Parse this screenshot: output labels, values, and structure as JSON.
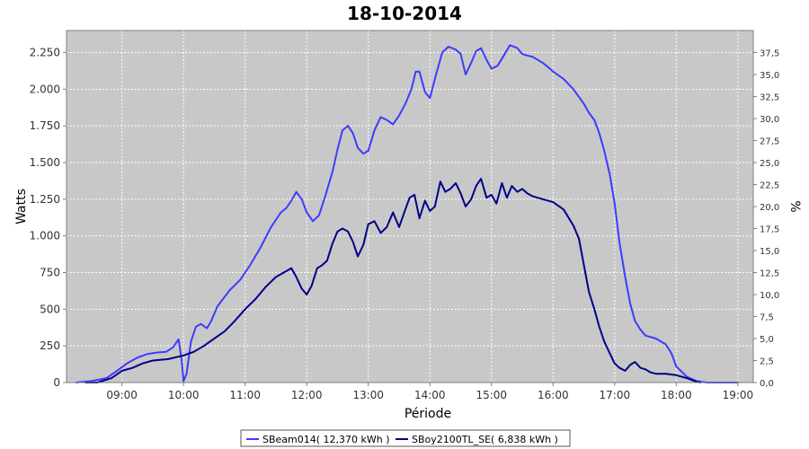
{
  "chart_data": {
    "type": "line",
    "title": "18-10-2014",
    "xlabel": "Période",
    "ylabel": "Watts",
    "y2label": "%",
    "xlim": [
      8.1,
      19.25
    ],
    "ylim": [
      0,
      2400
    ],
    "y2lim": [
      0,
      40
    ],
    "x_ticks": [
      {
        "v": 9,
        "label": "09:00"
      },
      {
        "v": 10,
        "label": "10:00"
      },
      {
        "v": 11,
        "label": "11:00"
      },
      {
        "v": 12,
        "label": "12:00"
      },
      {
        "v": 13,
        "label": "13:00"
      },
      {
        "v": 14,
        "label": "14:00"
      },
      {
        "v": 15,
        "label": "15:00"
      },
      {
        "v": 16,
        "label": "16:00"
      },
      {
        "v": 17,
        "label": "17:00"
      },
      {
        "v": 18,
        "label": "18:00"
      },
      {
        "v": 19,
        "label": "19:00"
      }
    ],
    "y_ticks": [
      {
        "v": 0,
        "label": "0"
      },
      {
        "v": 250,
        "label": "250"
      },
      {
        "v": 500,
        "label": "500"
      },
      {
        "v": 750,
        "label": "750"
      },
      {
        "v": 1000,
        "label": "1.000"
      },
      {
        "v": 1250,
        "label": "1.250"
      },
      {
        "v": 1500,
        "label": "1.500"
      },
      {
        "v": 1750,
        "label": "1.750"
      },
      {
        "v": 2000,
        "label": "2.000"
      },
      {
        "v": 2250,
        "label": "2.250"
      }
    ],
    "y2_ticks": [
      {
        "v": 0,
        "label": "0,0"
      },
      {
        "v": 2.5,
        "label": "2,5"
      },
      {
        "v": 5,
        "label": "5,0"
      },
      {
        "v": 7.5,
        "label": "7,5"
      },
      {
        "v": 10,
        "label": "10,0"
      },
      {
        "v": 12.5,
        "label": "12,5"
      },
      {
        "v": 15,
        "label": "15,0"
      },
      {
        "v": 17.5,
        "label": "17,5"
      },
      {
        "v": 20,
        "label": "20,0"
      },
      {
        "v": 22.5,
        "label": "22,5"
      },
      {
        "v": 25,
        "label": "25,0"
      },
      {
        "v": 27.5,
        "label": "27,5"
      },
      {
        "v": 30,
        "label": "30,0"
      },
      {
        "v": 32.5,
        "label": "32,5"
      },
      {
        "v": 35,
        "label": "35,0"
      },
      {
        "v": 37.5,
        "label": "37,5"
      }
    ],
    "grid": true,
    "legend_position": "bottom",
    "plot_background": "#c8c8c8",
    "series": [
      {
        "name": "SBeam014( 12,370 kWh )",
        "color": "#3c3cff",
        "x": [
          8.25,
          8.5,
          8.75,
          8.92,
          9.08,
          9.25,
          9.42,
          9.58,
          9.72,
          9.83,
          9.92,
          9.97,
          10.0,
          10.05,
          10.12,
          10.2,
          10.28,
          10.38,
          10.45,
          10.55,
          10.75,
          10.92,
          11.08,
          11.25,
          11.42,
          11.58,
          11.67,
          11.75,
          11.83,
          11.92,
          12.0,
          12.1,
          12.2,
          12.3,
          12.42,
          12.5,
          12.58,
          12.67,
          12.75,
          12.83,
          12.92,
          13.0,
          13.1,
          13.2,
          13.3,
          13.4,
          13.5,
          13.6,
          13.7,
          13.77,
          13.83,
          13.92,
          14.0,
          14.1,
          14.2,
          14.3,
          14.42,
          14.5,
          14.58,
          14.67,
          14.75,
          14.83,
          14.92,
          15.0,
          15.1,
          15.2,
          15.3,
          15.42,
          15.5,
          15.58,
          15.67,
          15.75,
          15.83,
          15.92,
          16.0,
          16.17,
          16.33,
          16.5,
          16.58,
          16.67,
          16.75,
          16.83,
          16.92,
          17.0,
          17.08,
          17.17,
          17.25,
          17.33,
          17.42,
          17.5,
          17.67,
          17.83,
          17.92,
          18.0,
          18.17,
          18.33,
          18.5,
          18.83,
          19.0
        ],
        "y": [
          0,
          10,
          30,
          80,
          130,
          170,
          195,
          205,
          210,
          240,
          295,
          150,
          10,
          60,
          280,
          380,
          400,
          370,
          420,
          520,
          630,
          700,
          800,
          920,
          1060,
          1160,
          1190,
          1240,
          1300,
          1250,
          1160,
          1100,
          1140,
          1270,
          1440,
          1590,
          1720,
          1750,
          1700,
          1600,
          1560,
          1580,
          1720,
          1810,
          1790,
          1760,
          1820,
          1900,
          2000,
          2120,
          2120,
          1980,
          1940,
          2100,
          2250,
          2290,
          2270,
          2240,
          2100,
          2180,
          2260,
          2280,
          2200,
          2140,
          2160,
          2230,
          2300,
          2280,
          2240,
          2230,
          2220,
          2200,
          2180,
          2150,
          2120,
          2070,
          2000,
          1900,
          1840,
          1790,
          1700,
          1580,
          1420,
          1220,
          950,
          720,
          540,
          420,
          360,
          320,
          300,
          260,
          200,
          110,
          40,
          10,
          0,
          0,
          0
        ]
      },
      {
        "name": "SBoy2100TL_SE( 6,838 kWh )",
        "color": "#00008b",
        "x": [
          8.4,
          8.6,
          8.83,
          9.0,
          9.17,
          9.33,
          9.5,
          9.75,
          10.0,
          10.17,
          10.33,
          10.5,
          10.67,
          10.83,
          11.0,
          11.17,
          11.33,
          11.5,
          11.67,
          11.75,
          11.83,
          11.92,
          12.0,
          12.08,
          12.17,
          12.25,
          12.33,
          12.42,
          12.5,
          12.58,
          12.67,
          12.75,
          12.83,
          12.92,
          13.0,
          13.1,
          13.2,
          13.3,
          13.4,
          13.5,
          13.6,
          13.67,
          13.75,
          13.83,
          13.92,
          14.0,
          14.08,
          14.17,
          14.25,
          14.33,
          14.42,
          14.5,
          14.58,
          14.67,
          14.75,
          14.83,
          14.92,
          15.0,
          15.08,
          15.17,
          15.25,
          15.33,
          15.42,
          15.5,
          15.58,
          15.67,
          15.75,
          15.83,
          16.0,
          16.17,
          16.33,
          16.42,
          16.5,
          16.58,
          16.67,
          16.75,
          16.83,
          16.92,
          17.0,
          17.08,
          17.17,
          17.25,
          17.33,
          17.42,
          17.5,
          17.58,
          17.67,
          17.83,
          18.0,
          18.17,
          18.33,
          18.4
        ],
        "y": [
          0,
          0,
          30,
          80,
          100,
          130,
          150,
          160,
          185,
          210,
          250,
          300,
          350,
          420,
          500,
          570,
          650,
          720,
          760,
          780,
          720,
          640,
          600,
          660,
          780,
          800,
          830,
          950,
          1030,
          1050,
          1030,
          960,
          860,
          940,
          1080,
          1100,
          1020,
          1060,
          1160,
          1060,
          1180,
          1260,
          1280,
          1120,
          1240,
          1170,
          1200,
          1370,
          1300,
          1320,
          1360,
          1290,
          1200,
          1250,
          1340,
          1390,
          1260,
          1280,
          1220,
          1360,
          1260,
          1340,
          1300,
          1320,
          1290,
          1270,
          1260,
          1250,
          1230,
          1180,
          1070,
          980,
          800,
          620,
          500,
          380,
          280,
          200,
          130,
          100,
          80,
          120,
          140,
          100,
          90,
          70,
          60,
          60,
          50,
          30,
          5,
          0
        ]
      }
    ]
  }
}
